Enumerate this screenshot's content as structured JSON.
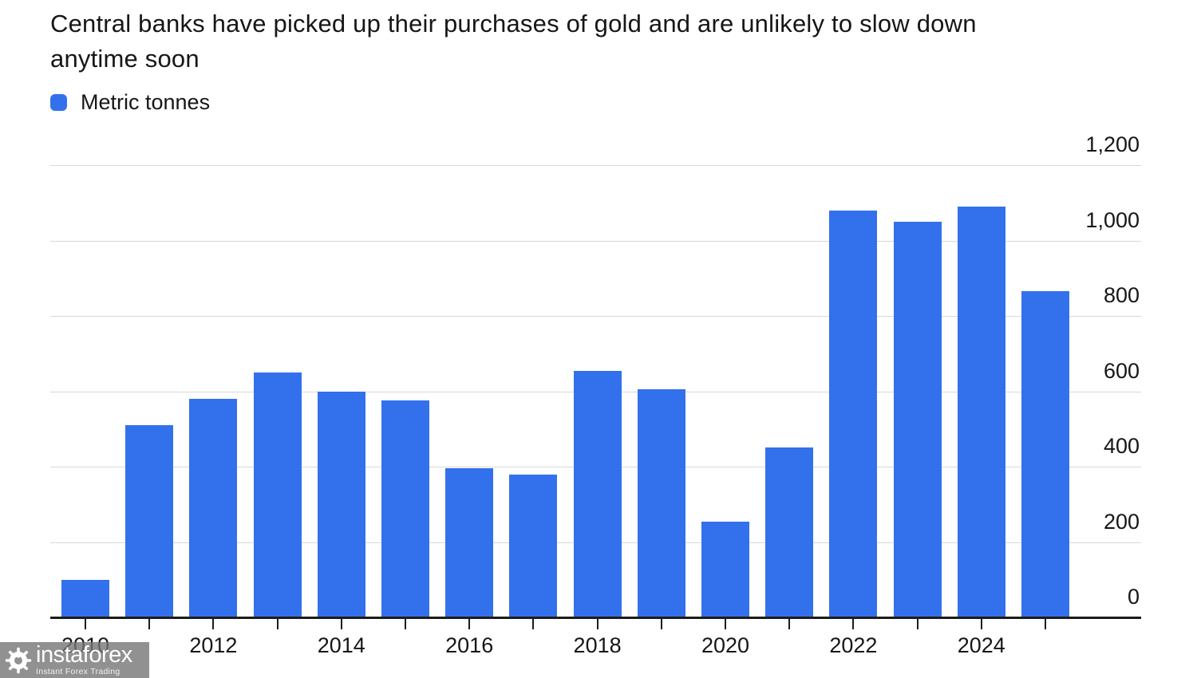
{
  "title": "Central banks have picked up their purchases of gold and are unlikely to slow down anytime soon",
  "title_lines": {
    "line1": "Central banks have picked up their purchases of gold and are unlikely to slow down",
    "line2": "anytime soon"
  },
  "legend": {
    "label": "Metric tonnes",
    "swatch_color": "#3371ec",
    "position": "top-left"
  },
  "watermark": {
    "brand": "instaforex",
    "tagline": "Instant Forex Trading",
    "icon": "gear-icon"
  },
  "colors": {
    "bar": "#3371ec",
    "gridline": "#d8d8d8",
    "axis_line": "#1c1c1c",
    "text": "#161616",
    "background": "#ffffff",
    "watermark_bg": "rgba(118,118,118,0.80)",
    "watermark_text": "#ffffff"
  },
  "chart_data": {
    "type": "bar",
    "title": "Central banks have picked up their purchases of gold and are unlikely to slow down anytime soon",
    "series_name": "Metric tonnes",
    "categories": [
      "2010",
      "2011",
      "2012",
      "2013",
      "2014",
      "2015",
      "2016",
      "2017",
      "2018",
      "2019",
      "2020",
      "2021",
      "2022",
      "2023",
      "2024",
      "2025"
    ],
    "values": [
      100,
      510,
      580,
      650,
      600,
      575,
      395,
      380,
      655,
      605,
      255,
      450,
      1080,
      1050,
      1090,
      865
    ],
    "xlabel": "",
    "ylabel": "Metric tonnes",
    "ylim": [
      0,
      1200
    ],
    "ytick_values": [
      0,
      200,
      400,
      600,
      800,
      1000,
      1200
    ],
    "ytick_labels": [
      "0",
      "200",
      "400",
      "600",
      "800",
      "1,000",
      "1,200"
    ],
    "xtick_labels_shown": [
      "2010",
      "2012",
      "2014",
      "2016",
      "2018",
      "2020",
      "2022",
      "2024"
    ],
    "grid": "horizontal",
    "yaxis_side": "right",
    "legend_position": "top-left"
  }
}
